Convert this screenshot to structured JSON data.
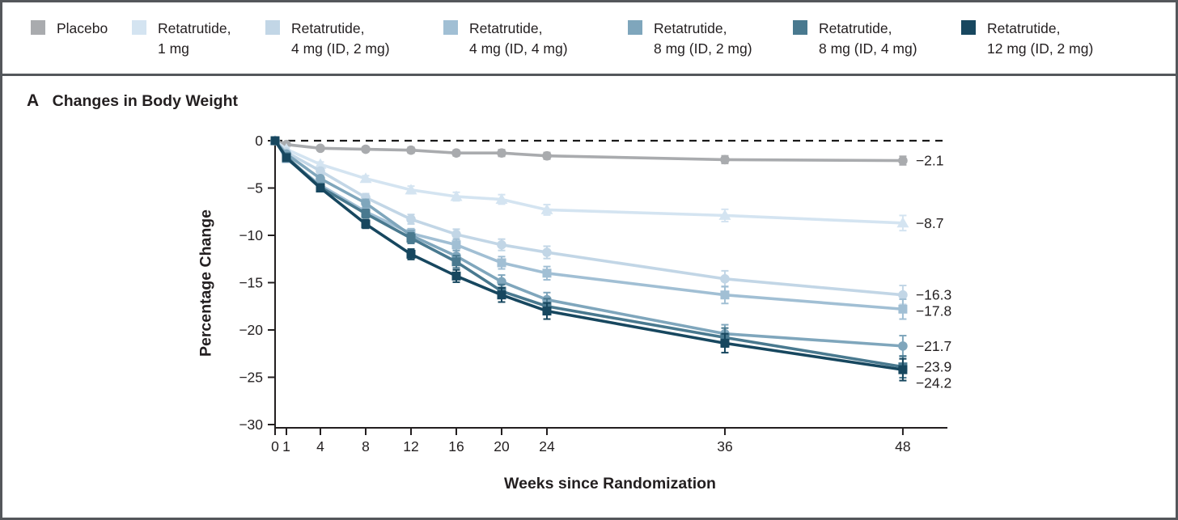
{
  "figure": {
    "panel_label": "A",
    "panel_title": "Changes in Body Weight"
  },
  "legend": {
    "items": [
      {
        "id": "placebo",
        "label": "Placebo",
        "color": "#a9abae"
      },
      {
        "id": "retatrutide-1mg",
        "label": "Retatrutide,\n1 mg",
        "color": "#d4e4f1"
      },
      {
        "id": "retatrutide-4mg-id2",
        "label": "Retatrutide,\n4 mg (ID, 2 mg)",
        "color": "#c2d6e6"
      },
      {
        "id": "retatrutide-4mg-id4",
        "label": "Retatrutide,\n4 mg (ID, 4 mg)",
        "color": "#a1bfd4"
      },
      {
        "id": "retatrutide-8mg-id2",
        "label": "Retatrutide,\n8 mg (ID, 2 mg)",
        "color": "#7fa6bc"
      },
      {
        "id": "retatrutide-8mg-id4",
        "label": "Retatrutide,\n8 mg (ID, 4 mg)",
        "color": "#49798f"
      },
      {
        "id": "retatrutide-12mg-id2",
        "label": "Retatrutide,\n12 mg (ID, 2 mg)",
        "color": "#17475f"
      }
    ]
  },
  "chart_data": {
    "type": "line",
    "title": "Changes in Body Weight",
    "xlabel": "Weeks since Randomization",
    "ylabel": "Percentage Change",
    "x": [
      0,
      1,
      4,
      8,
      12,
      16,
      20,
      24,
      36,
      48
    ],
    "x_tick_labels": [
      "0",
      "1",
      "4",
      "8",
      "12",
      "16",
      "20",
      "24",
      "36",
      "48"
    ],
    "y_tick_values": [
      0,
      -5,
      -10,
      -15,
      -20,
      -25,
      -30
    ],
    "y_tick_labels": [
      "0",
      "−5",
      "−10",
      "−15",
      "−20",
      "−25",
      "−30"
    ],
    "ylim": [
      -30,
      0
    ],
    "zero_line": "dashed",
    "grid": false,
    "legend_position": "top",
    "series": [
      {
        "name": "Placebo",
        "color": "#a9abae",
        "marker": "circle",
        "end_label": "−2.1",
        "values": [
          0,
          -0.4,
          -0.8,
          -0.9,
          -1.0,
          -1.3,
          -1.3,
          -1.6,
          -2.0,
          -2.1
        ],
        "se": [
          0,
          0.15,
          0.2,
          0.25,
          0.3,
          0.3,
          0.35,
          0.35,
          0.4,
          0.45
        ]
      },
      {
        "name": "Retatrutide, 1 mg",
        "color": "#d4e4f1",
        "marker": "triangle",
        "end_label": "−8.7",
        "values": [
          0,
          -0.9,
          -2.5,
          -4.0,
          -5.2,
          -5.9,
          -6.2,
          -7.3,
          -7.9,
          -8.7
        ],
        "se": [
          0,
          0.2,
          0.25,
          0.3,
          0.4,
          0.45,
          0.5,
          0.55,
          0.65,
          0.8
        ]
      },
      {
        "name": "Retatrutide, 4 mg (ID, 2 mg)",
        "color": "#c2d6e6",
        "marker": "circle",
        "end_label": "−16.3",
        "values": [
          0,
          -1.2,
          -3.2,
          -6.0,
          -8.3,
          -9.9,
          -11.0,
          -11.8,
          -14.6,
          -16.3
        ],
        "se": [
          0,
          0.2,
          0.3,
          0.4,
          0.5,
          0.55,
          0.6,
          0.65,
          0.85,
          1.0
        ]
      },
      {
        "name": "Retatrutide, 4 mg (ID, 4 mg)",
        "color": "#a1bfd4",
        "marker": "square",
        "end_label": "−17.8",
        "values": [
          0,
          -1.9,
          -4.7,
          -7.5,
          -9.8,
          -11.0,
          -12.9,
          -14.0,
          -16.3,
          -17.8
        ],
        "se": [
          0,
          0.2,
          0.3,
          0.4,
          0.5,
          0.6,
          0.65,
          0.7,
          0.9,
          1.05
        ]
      },
      {
        "name": "Retatrutide, 8 mg (ID, 2 mg)",
        "color": "#7fa6bc",
        "marker": "circle",
        "end_label": "−21.7",
        "values": [
          0,
          -1.4,
          -4.0,
          -6.6,
          -10.0,
          -12.2,
          -14.9,
          -16.8,
          -20.4,
          -21.7
        ],
        "se": [
          0,
          0.2,
          0.3,
          0.4,
          0.5,
          0.6,
          0.7,
          0.75,
          0.95,
          1.1
        ]
      },
      {
        "name": "Retatrutide, 8 mg (ID, 4 mg)",
        "color": "#49798f",
        "marker": "square",
        "end_label": "−23.9",
        "values": [
          0,
          -1.7,
          -4.9,
          -7.7,
          -10.3,
          -12.8,
          -15.9,
          -17.5,
          -20.8,
          -23.9
        ],
        "se": [
          0,
          0.2,
          0.3,
          0.45,
          0.55,
          0.65,
          0.7,
          0.8,
          1.0,
          1.15
        ]
      },
      {
        "name": "Retatrutide, 12 mg (ID, 2 mg)",
        "color": "#17475f",
        "marker": "square",
        "end_label": "−24.2",
        "values": [
          0,
          -1.8,
          -5.0,
          -8.8,
          -12.0,
          -14.3,
          -16.3,
          -18.0,
          -21.4,
          -24.2
        ],
        "se": [
          0,
          0.2,
          0.3,
          0.45,
          0.55,
          0.65,
          0.75,
          0.85,
          1.0,
          1.15
        ]
      }
    ]
  }
}
